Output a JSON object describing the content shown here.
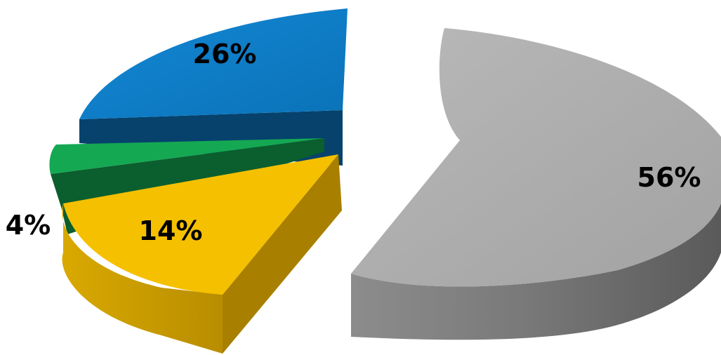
{
  "chart_data": {
    "type": "pie",
    "style": "3d-exploded",
    "legend": "none",
    "slices": [
      {
        "value": 56,
        "label": "56%",
        "color": "#a9a9a9"
      },
      {
        "value": 26,
        "label": "26%",
        "color": "#0f7fc9"
      },
      {
        "value": 4,
        "label": "4%",
        "color": "#14a853"
      },
      {
        "value": 14,
        "label": "14%",
        "color": "#f5c000"
      }
    ]
  }
}
